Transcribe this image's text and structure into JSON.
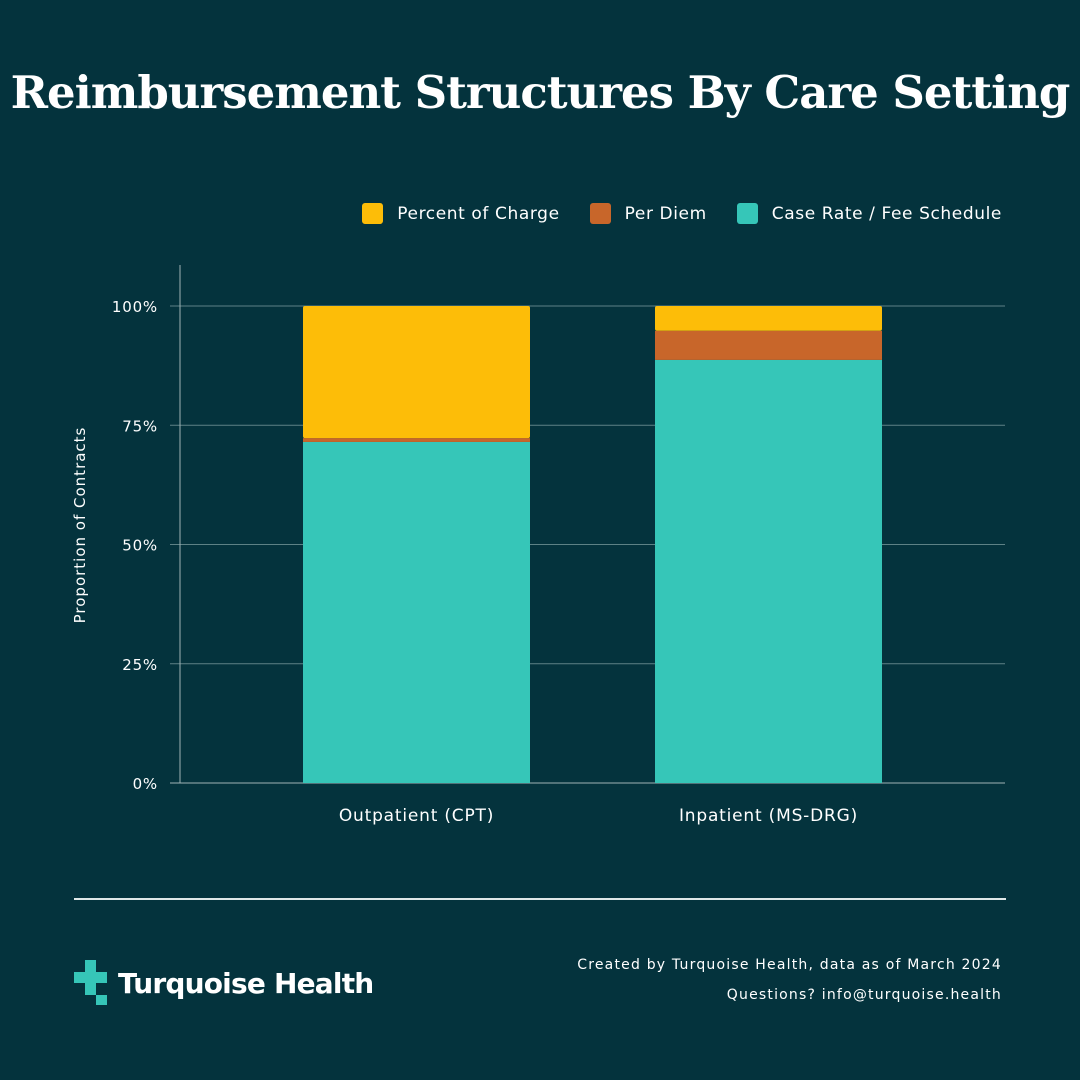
{
  "chart_data": {
    "type": "bar",
    "stacked": true,
    "title": "Reimbursement Structures By Care Setting",
    "xlabel": "",
    "ylabel": "Proportion of Contracts",
    "ylim": [
      0,
      100
    ],
    "yticks": [
      "0%",
      "25%",
      "50%",
      "75%",
      "100%"
    ],
    "grid": true,
    "legend_placement": "top-right",
    "categories": [
      "Outpatient (CPT)",
      "Inpatient (MS-DRG)"
    ],
    "series": [
      {
        "name": "Case Rate / Fee Schedule",
        "color": "#36c6b8",
        "values": [
          71.5,
          88.7
        ]
      },
      {
        "name": "Per Diem",
        "color": "#c8662a",
        "values": [
          0.8,
          6.1
        ]
      },
      {
        "name": "Percent of Charge",
        "color": "#fdbd08",
        "values": [
          27.7,
          5.2
        ]
      }
    ],
    "legend_order": [
      "Percent of Charge",
      "Per Diem",
      "Case Rate / Fee Schedule"
    ]
  },
  "footer": {
    "credit": "Created by Turquoise Health, data as of March 2024",
    "contact": "Questions?  info@turquoise.health",
    "logo_text": "Turquoise Health"
  }
}
